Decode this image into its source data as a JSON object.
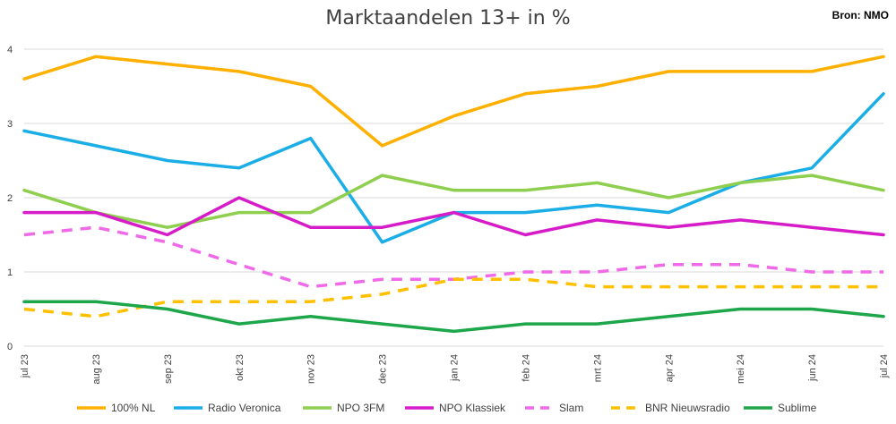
{
  "header": {
    "title": "Marktaandelen 13+ in %",
    "source": "Bron: NMO"
  },
  "chart_data": {
    "type": "line",
    "title": "Marktaandelen 13+ in %",
    "xlabel": "",
    "ylabel": "",
    "ylim": [
      0,
      4
    ],
    "yticks": [
      "0",
      "1",
      "2",
      "3",
      "4"
    ],
    "grid": true,
    "legend_position": "bottom",
    "categories": [
      "jul 23",
      "aug 23",
      "sep 23",
      "okt 23",
      "nov 23",
      "dec 23",
      "jan 24",
      "feb 24",
      "mrt 24",
      "apr 24",
      "mei 24",
      "jun 24",
      "jul 24"
    ],
    "series": [
      {
        "name": "100% NL",
        "color": "#FFB000",
        "dashed": false,
        "values": [
          3.6,
          3.9,
          3.8,
          3.7,
          3.5,
          2.7,
          3.1,
          3.4,
          3.5,
          3.7,
          3.7,
          3.7,
          3.9
        ]
      },
      {
        "name": "Radio Veronica",
        "color": "#1BAEE6",
        "dashed": false,
        "values": [
          2.9,
          2.7,
          2.5,
          2.4,
          2.8,
          1.4,
          1.8,
          1.8,
          1.9,
          1.8,
          2.2,
          2.4,
          3.4
        ]
      },
      {
        "name": "NPO 3FM",
        "color": "#8FCF4F",
        "dashed": false,
        "values": [
          2.1,
          1.8,
          1.6,
          1.8,
          1.8,
          2.3,
          2.1,
          2.1,
          2.2,
          2.0,
          2.2,
          2.3,
          2.1
        ]
      },
      {
        "name": "NPO Klassiek",
        "color": "#D61CC9",
        "dashed": false,
        "values": [
          1.8,
          1.8,
          1.5,
          2.0,
          1.6,
          1.6,
          1.8,
          1.5,
          1.7,
          1.6,
          1.7,
          1.6,
          1.5
        ]
      },
      {
        "name": "Slam",
        "color": "#F069E8",
        "dashed": true,
        "values": [
          1.5,
          1.6,
          1.4,
          1.1,
          0.8,
          0.9,
          0.9,
          1.0,
          1.0,
          1.1,
          1.1,
          1.0,
          1.0
        ]
      },
      {
        "name": "BNR Nieuwsradio",
        "color": "#FFC000",
        "dashed": true,
        "values": [
          0.5,
          0.4,
          0.6,
          0.6,
          0.6,
          0.7,
          0.9,
          0.9,
          0.8,
          0.8,
          0.8,
          0.8,
          0.8
        ]
      },
      {
        "name": "Sublime",
        "color": "#1EA74A",
        "dashed": false,
        "values": [
          0.6,
          0.6,
          0.5,
          0.3,
          0.4,
          0.3,
          0.2,
          0.3,
          0.3,
          0.4,
          0.5,
          0.5,
          0.4
        ]
      }
    ]
  }
}
